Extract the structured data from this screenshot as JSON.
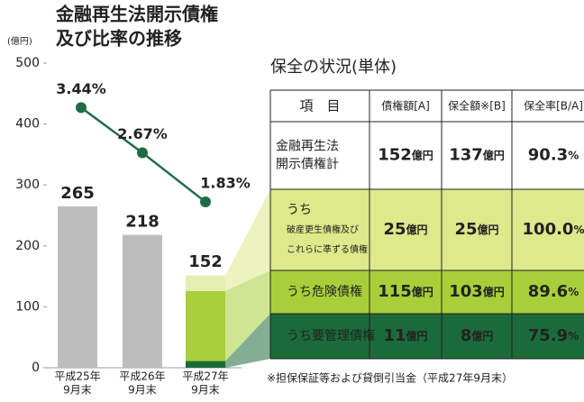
{
  "chart_data": {
    "type": "bar",
    "title": [
      "金融再生法開示債権",
      "及び比率の推移"
    ],
    "y_unit": "(億円)",
    "categories": [
      [
        "平成25年",
        "9月末"
      ],
      [
        "平成26年",
        "9月末"
      ],
      [
        "平成27年",
        "9月末"
      ]
    ],
    "values": [
      265,
      218,
      152
    ],
    "color": "#bdbdbd",
    "segments": [
      {
        "name": "うち要管理債権",
        "value": 11,
        "color": "#1b6b3a"
      },
      {
        "name": "うち危険債権",
        "value": 115,
        "color": "#a8cf3a"
      },
      {
        "name": "うち破産更生債権及びこれらに準ずる債権",
        "value": 25,
        "color": "#e4eeb0"
      }
    ],
    "ylim": [
      0,
      500
    ],
    "yticks": [
      0,
      100,
      200,
      300,
      400,
      500
    ],
    "line": {
      "values": [
        3.44,
        2.67,
        1.83
      ],
      "value_labels": [
        "3.44%",
        "2.67%",
        "1.83%"
      ],
      "color": "#1f6b45",
      "axis": "y2"
    },
    "y2lim": [
      -1,
      4.2
    ]
  },
  "table": {
    "title": "保全の状況(単体)",
    "header": [
      "項　目",
      "債権額[A]",
      "保全額※[B]",
      "保全率[B/A]"
    ],
    "rows": [
      {
        "label": [
          "金融再生法",
          "開示債権計"
        ],
        "cells": [
          {
            "value": "152",
            "unit": "億円"
          },
          {
            "value": "137",
            "unit": "億円"
          },
          {
            "value": "90.3",
            "unit": "%"
          }
        ]
      },
      {
        "label": [
          "うち",
          "破産更生債権及び",
          "これらに準ずる債権"
        ],
        "cells": [
          {
            "value": "25",
            "unit": "億円"
          },
          {
            "value": "25",
            "unit": "億円"
          },
          {
            "value": "100.0",
            "unit": "%"
          }
        ]
      },
      {
        "label": [
          "うち危険債権"
        ],
        "cells": [
          {
            "value": "115",
            "unit": "億円"
          },
          {
            "value": "103",
            "unit": "億円"
          },
          {
            "value": "89.6",
            "unit": "%"
          }
        ]
      },
      {
        "label": [
          "うち要管理債権"
        ],
        "cells": [
          {
            "value": "11",
            "unit": "億円"
          },
          {
            "value": "8",
            "unit": "億円"
          },
          {
            "value": "75.9",
            "unit": "%"
          }
        ]
      }
    ],
    "footnote": "※担保保証等および貸倒引当金（平成27年9月末）"
  }
}
